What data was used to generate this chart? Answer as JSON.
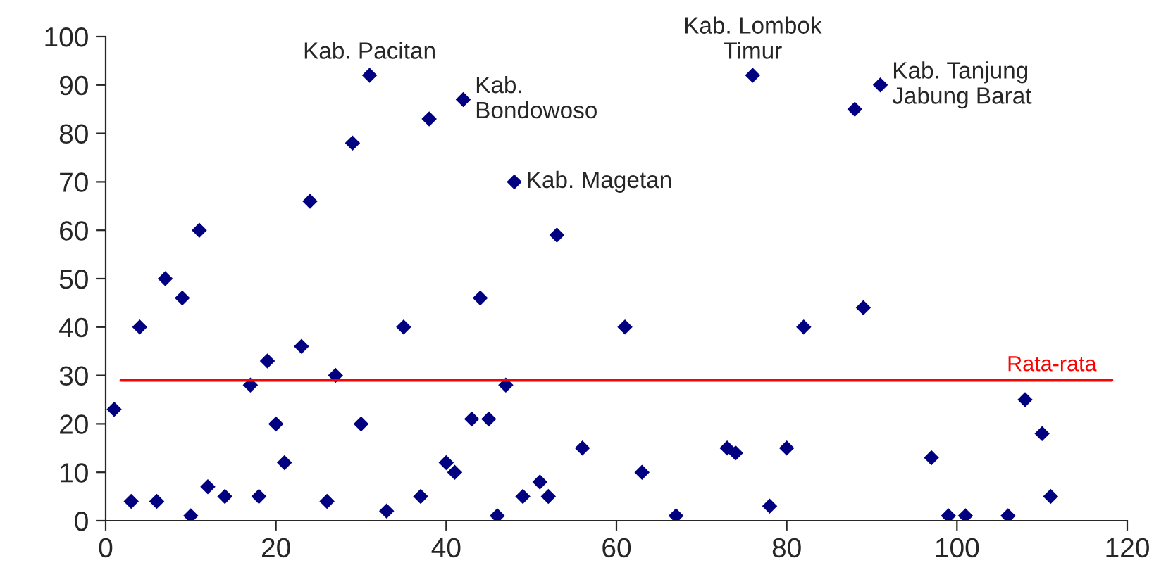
{
  "chart_data": {
    "type": "scatter",
    "marker": "diamond",
    "grid": false,
    "x": [
      1,
      3,
      4,
      6,
      7,
      9,
      10,
      11,
      12,
      14,
      17,
      18,
      19,
      20,
      21,
      23,
      24,
      26,
      27,
      29,
      30,
      31,
      33,
      35,
      37,
      38,
      40,
      41,
      42,
      43,
      44,
      45,
      46,
      47,
      48,
      49,
      51,
      52,
      53,
      56,
      61,
      63,
      67,
      73,
      74,
      76,
      78,
      80,
      82,
      88,
      89,
      91,
      97,
      99,
      101,
      106,
      108,
      110,
      111
    ],
    "series": [
      {
        "color": "#000080",
        "values": [
          23,
          4,
          40,
          4,
          50,
          46,
          1,
          60,
          7,
          5,
          28,
          5,
          33,
          20,
          12,
          36,
          66,
          4,
          30,
          78,
          20,
          92,
          2,
          40,
          5,
          83,
          12,
          10,
          87,
          21,
          46,
          21,
          1,
          28,
          70,
          5,
          8,
          5,
          59,
          15,
          40,
          10,
          1,
          15,
          14,
          92,
          3,
          15,
          40,
          85,
          44,
          90,
          13,
          1,
          1,
          1,
          25,
          18,
          5
        ]
      }
    ],
    "xlim": [
      0,
      120
    ],
    "xticks": [
      0,
      20,
      40,
      60,
      80,
      100,
      120
    ],
    "ylim": [
      0,
      100
    ],
    "yticks": [
      0,
      10,
      20,
      30,
      40,
      50,
      60,
      70,
      80,
      90,
      100
    ],
    "ref_lines": [
      {
        "axis": "y",
        "value": 29,
        "label": "Rata-rata",
        "color": "#ff0000"
      }
    ],
    "annotations": [
      {
        "text": "Kab. Pacitan",
        "x": 31,
        "y": 92
      },
      {
        "text": "Kab.\nBondowoso",
        "x": 42,
        "y": 87
      },
      {
        "text": "Kab. Magetan",
        "x": 48,
        "y": 70
      },
      {
        "text": "Kab. Lombok\nTimur",
        "x": 76,
        "y": 92
      },
      {
        "text": "Kab. Tanjung\nJabung Barat",
        "x": 91,
        "y": 90
      }
    ]
  }
}
